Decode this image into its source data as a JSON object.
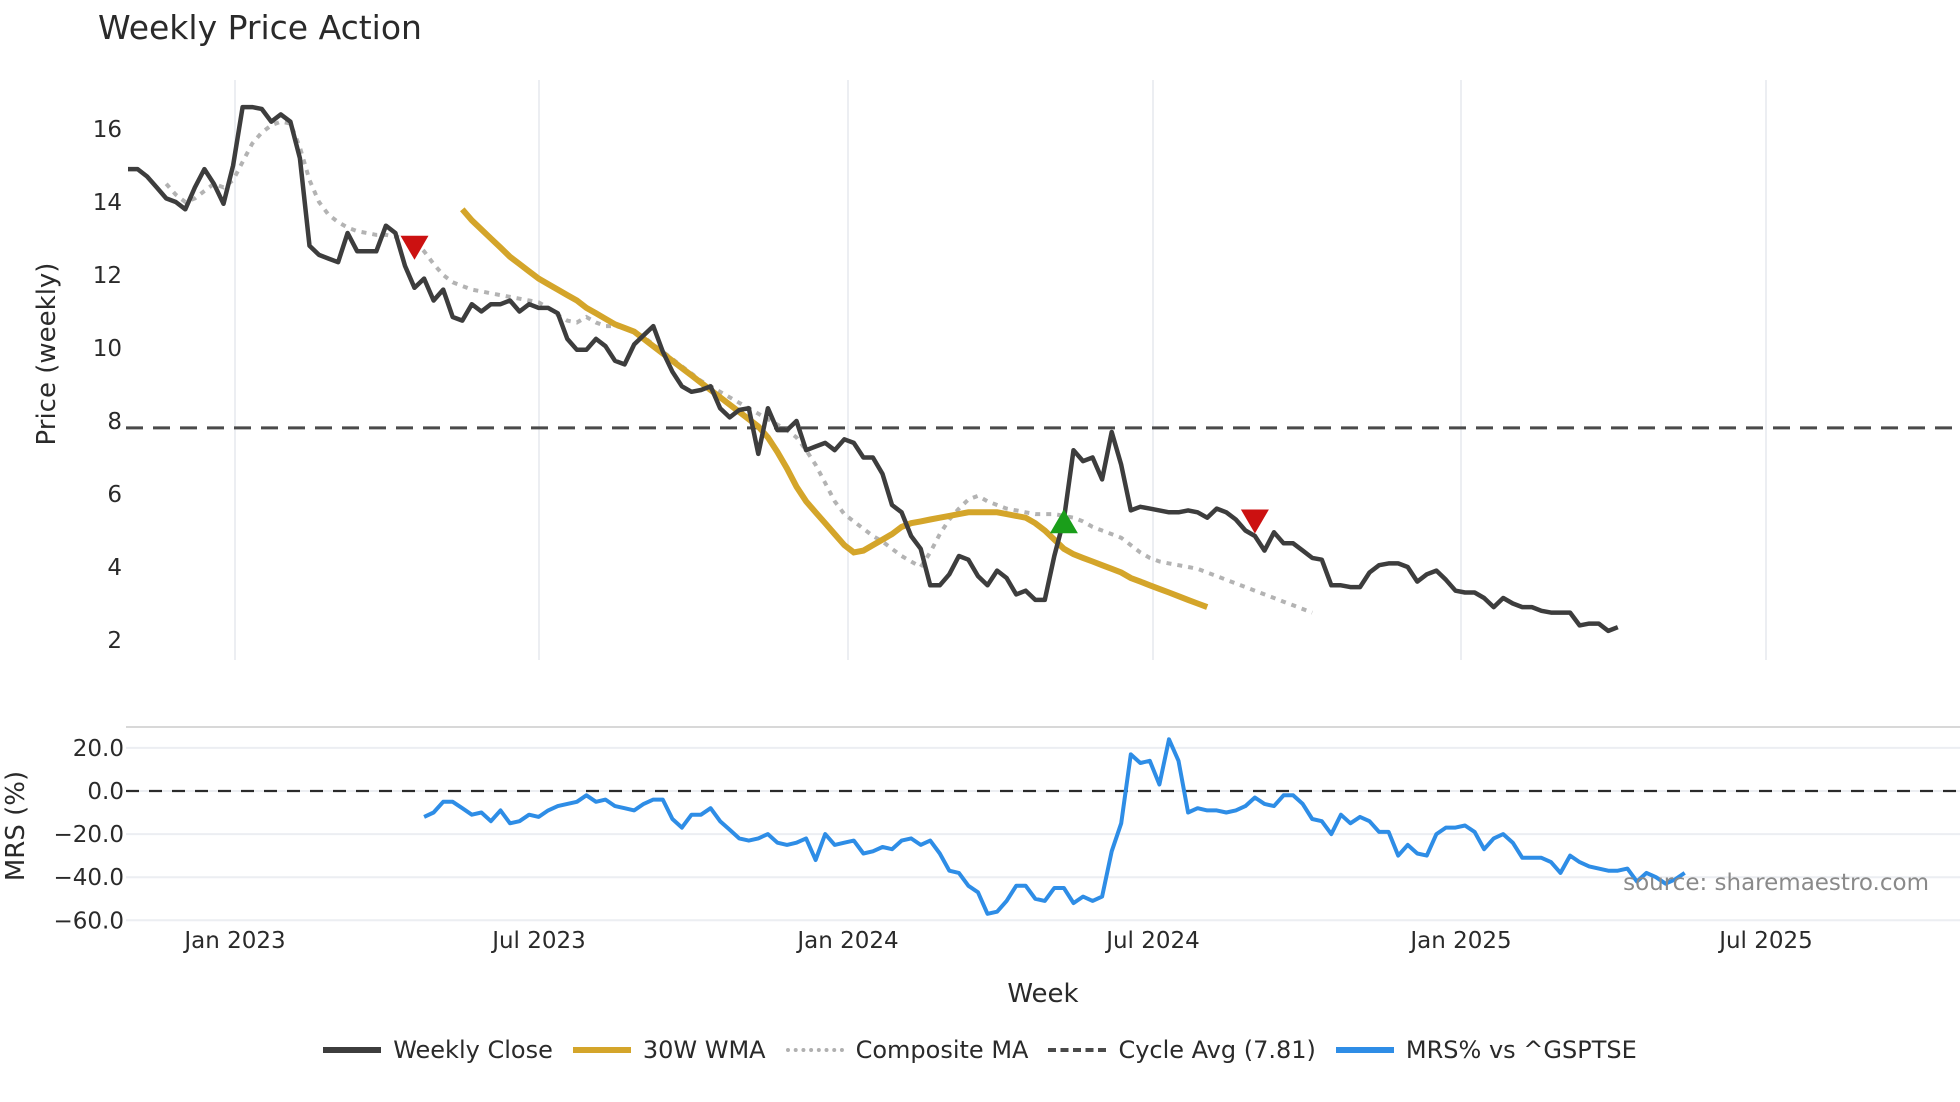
{
  "title": "Weekly Price Action",
  "source_note": "source: sharemaestro.com",
  "legend": [
    {
      "label": "Weekly Close",
      "color": "#3d3d3d",
      "style": "solid"
    },
    {
      "label": "30W WMA",
      "color": "#d4a52a",
      "style": "solid"
    },
    {
      "label": "Composite MA",
      "color": "#b0b0b0",
      "style": "dotted"
    },
    {
      "label": "Cycle Avg (7.81)",
      "color": "#4a4a4a",
      "style": "dashed"
    },
    {
      "label": "MRS% vs ^GSPTSE",
      "color": "#2e8de6",
      "style": "solid"
    }
  ],
  "chart_data": [
    {
      "type": "line",
      "title": "Weekly Price Action",
      "xlabel": "Week",
      "ylabel": "Price (weekly)",
      "yticks": [
        2,
        4,
        6,
        8,
        10,
        12,
        14,
        16
      ],
      "ylim": [
        1.5,
        17.3
      ],
      "xticks": [
        "Jan 2023",
        "Jul 2023",
        "Jan 2024",
        "Jul 2024",
        "Jan 2025",
        "Jul 2025"
      ],
      "grid": "vertical",
      "reference_lines": [
        {
          "name": "Cycle Avg",
          "value": 7.81,
          "style": "dashed"
        }
      ],
      "markers": [
        {
          "type": "sell",
          "shape": "triangle-down",
          "color": "#cc1111",
          "x_week": 30,
          "value": 12.8
        },
        {
          "type": "buy",
          "shape": "triangle-up",
          "color": "#1a9e1a",
          "x_week": 98,
          "value": 5.2
        },
        {
          "type": "sell",
          "shape": "triangle-down",
          "color": "#cc1111",
          "x_week": 118,
          "value": 5.3
        }
      ],
      "series": [
        {
          "name": "Weekly Close",
          "start_week": 0,
          "values": [
            14.9,
            14.9,
            14.7,
            14.4,
            14.1,
            14.0,
            13.8,
            14.4,
            14.9,
            14.5,
            13.95,
            15.0,
            16.6,
            16.6,
            16.55,
            16.2,
            16.4,
            16.2,
            15.2,
            12.8,
            12.55,
            12.45,
            12.35,
            13.15,
            12.65,
            12.65,
            12.65,
            13.35,
            13.15,
            12.25,
            11.65,
            11.9,
            11.3,
            11.6,
            10.85,
            10.75,
            11.2,
            11.0,
            11.2,
            11.2,
            11.3,
            11.0,
            11.2,
            11.1,
            11.1,
            10.95,
            10.25,
            9.95,
            9.95,
            10.25,
            10.05,
            9.65,
            9.55,
            10.1,
            10.35,
            10.6,
            9.9,
            9.35,
            8.95,
            8.8,
            8.85,
            8.95,
            8.35,
            8.1,
            8.3,
            8.35,
            7.1,
            8.35,
            7.75,
            7.75,
            8.0,
            7.2,
            7.3,
            7.4,
            7.2,
            7.5,
            7.4,
            7.0,
            7.0,
            6.55,
            5.7,
            5.5,
            4.85,
            4.5,
            3.5,
            3.5,
            3.8,
            4.3,
            4.2,
            3.75,
            3.5,
            3.9,
            3.7,
            3.25,
            3.35,
            3.1,
            3.1,
            4.3,
            5.3,
            7.2,
            6.9,
            7.0,
            6.4,
            7.7,
            6.8,
            5.55,
            5.65,
            5.6,
            5.55,
            5.5,
            5.5,
            5.55,
            5.5,
            5.35,
            5.6,
            5.5,
            5.3,
            5.0,
            4.85,
            4.45,
            4.95,
            4.65,
            4.65,
            4.45,
            4.25,
            4.2,
            3.5,
            3.5,
            3.45,
            3.45,
            3.85,
            4.05,
            4.1,
            4.1,
            4.0,
            3.6,
            3.8,
            3.9,
            3.65,
            3.35,
            3.3,
            3.3,
            3.15,
            2.9,
            3.15,
            3.0,
            2.9,
            2.9,
            2.8,
            2.75,
            2.75,
            2.75,
            2.4,
            2.45,
            2.45,
            2.25,
            2.35
          ]
        },
        {
          "name": "30W WMA",
          "start_week": 35,
          "values": [
            13.8,
            13.5,
            13.25,
            13.0,
            12.75,
            12.5,
            12.3,
            12.1,
            11.9,
            11.75,
            11.6,
            11.45,
            11.3,
            11.1,
            10.95,
            10.8,
            10.65,
            10.55,
            10.45,
            10.25,
            10.05,
            9.85,
            9.65,
            9.45,
            9.25,
            9.05,
            8.85,
            8.65,
            8.45,
            8.25,
            8.05,
            7.85,
            7.55,
            7.15,
            6.7,
            6.2,
            5.8,
            5.5,
            5.2,
            4.9,
            4.6,
            4.4,
            4.45,
            4.6,
            4.75,
            4.9,
            5.1,
            5.2,
            5.25,
            5.3,
            5.35,
            5.4,
            5.45,
            5.5,
            5.5,
            5.5,
            5.5,
            5.45,
            5.4,
            5.35,
            5.2,
            5.0,
            4.75,
            4.5,
            4.35,
            4.25,
            4.15,
            4.05,
            3.95,
            3.85,
            3.7,
            3.6,
            3.5,
            3.4,
            3.3,
            3.2,
            3.1,
            3.0,
            2.9
          ]
        },
        {
          "name": "Composite MA",
          "start_week": 4,
          "values": [
            14.5,
            14.2,
            14.0,
            14.1,
            14.3,
            14.5,
            14.4,
            14.6,
            15.1,
            15.6,
            15.9,
            16.1,
            16.2,
            16.15,
            15.5,
            14.6,
            14.0,
            13.65,
            13.45,
            13.3,
            13.2,
            13.15,
            13.1,
            13.1,
            13.05,
            13.0,
            12.9,
            12.65,
            12.3,
            12.0,
            11.8,
            11.7,
            11.6,
            11.55,
            11.5,
            11.45,
            11.4,
            11.35,
            11.3,
            11.25,
            11.1,
            10.9,
            10.75,
            10.7,
            10.85,
            10.7,
            10.6,
            10.6,
            10.55,
            10.45,
            10.3,
            10.1,
            9.9,
            9.7,
            9.5,
            9.3,
            9.1,
            8.95,
            8.8,
            8.65,
            8.5,
            8.35,
            8.2,
            8.05,
            7.9,
            7.75,
            7.55,
            7.2,
            6.8,
            6.3,
            5.8,
            5.45,
            5.25,
            5.05,
            4.85,
            4.7,
            4.5,
            4.3,
            4.15,
            4.0,
            4.4,
            4.9,
            5.3,
            5.6,
            5.85,
            5.95,
            5.8,
            5.7,
            5.6,
            5.55,
            5.5,
            5.45,
            5.45,
            5.45,
            5.4,
            5.35,
            5.25,
            5.1,
            5.0,
            4.9,
            4.8,
            4.6,
            4.4,
            4.25,
            4.15,
            4.1,
            4.05,
            4.0,
            3.95,
            3.85,
            3.75,
            3.65,
            3.55,
            3.45,
            3.35,
            3.25,
            3.15,
            3.05,
            2.95,
            2.85,
            2.75
          ]
        }
      ]
    },
    {
      "type": "line",
      "ylabel": "MRS (%)",
      "yticks": [
        -60.0,
        -40.0,
        20.0,
        0.0,
        -20.0
      ],
      "ylim": [
        -62,
        30
      ],
      "reference_lines": [
        {
          "value": 0.0,
          "style": "dashed"
        }
      ],
      "series": [
        {
          "name": "MRS% vs ^GSPTSE",
          "start_week": 31,
          "values": [
            -12,
            -10,
            -5,
            -5,
            -8,
            -11,
            -10,
            -14,
            -9,
            -15,
            -14,
            -11,
            -12,
            -9,
            -7,
            -6,
            -5,
            -2,
            -5,
            -4,
            -7,
            -8,
            -9,
            -6,
            -4,
            -4,
            -13,
            -17,
            -11,
            -11,
            -8,
            -14,
            -18,
            -22,
            -23,
            -22,
            -20,
            -24,
            -25,
            -24,
            -22,
            -32,
            -20,
            -25,
            -24,
            -23,
            -29,
            -28,
            -26,
            -27,
            -23,
            -22,
            -25,
            -23,
            -29,
            -37,
            -38,
            -44,
            -47,
            -57,
            -56,
            -51,
            -44,
            -44,
            -50,
            -51,
            -45,
            -45,
            -52,
            -49,
            -51,
            -49,
            -28,
            -15,
            17,
            13,
            14,
            3,
            24,
            14,
            -10,
            -8,
            -9,
            -9,
            -10,
            -9,
            -7,
            -3,
            -6,
            -7,
            -2,
            -2,
            -6,
            -13,
            -14,
            -20,
            -11,
            -15,
            -12,
            -14,
            -19,
            -19,
            -30,
            -25,
            -29,
            -30,
            -20,
            -17,
            -17,
            -16,
            -19,
            -27,
            -22,
            -20,
            -24,
            -31,
            -31,
            -31,
            -33,
            -38,
            -30,
            -33,
            -35,
            -36,
            -37,
            -37,
            -36,
            -42,
            -38,
            -40,
            -43,
            -41,
            -38
          ]
        }
      ]
    }
  ]
}
